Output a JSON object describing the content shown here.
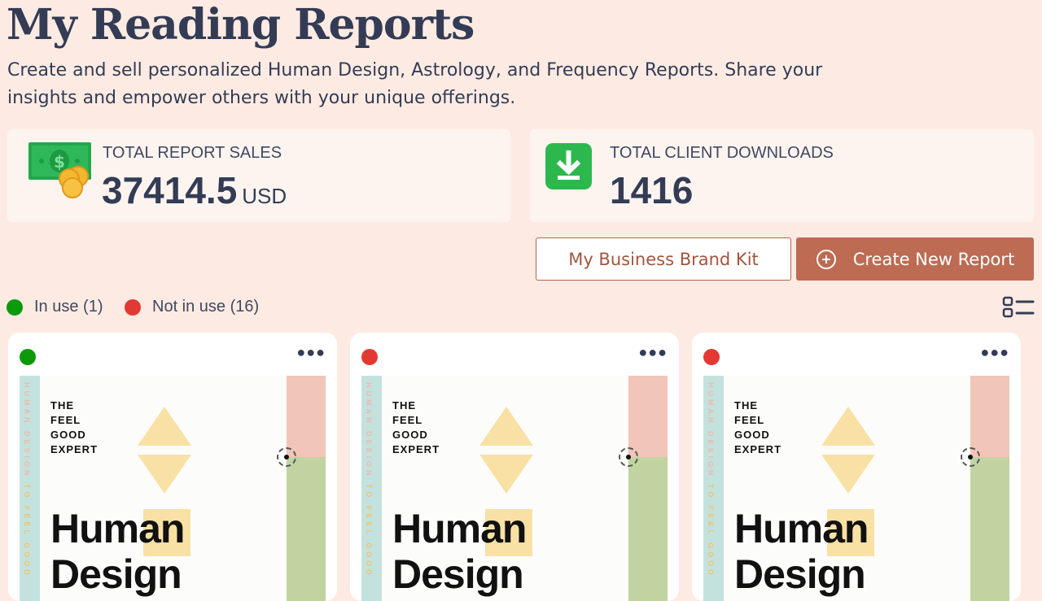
{
  "header": {
    "title": "My Reading Reports",
    "subtitle": "Create and sell personalized Human Design, Astrology, and Frequency Reports. Share your insights and empower others with your unique offerings."
  },
  "stats": {
    "sales": {
      "label": "TOTAL REPORT SALES",
      "value": "37414.5",
      "unit": "USD",
      "icon": "money-coins-icon"
    },
    "downloads": {
      "label": "TOTAL CLIENT DOWNLOADS",
      "value": "1416",
      "icon": "download-icon"
    }
  },
  "actions": {
    "brand_kit": "My Business Brand Kit",
    "create": "Create New Report",
    "create_icon": "plus-circle-icon"
  },
  "legend": {
    "in_use": "In use (1)",
    "not_in_use": "Not in use (16)",
    "in_use_color": "#0a9a0a",
    "not_in_use_color": "#e23a33"
  },
  "view_toggle_icon": "list-view-icon",
  "reports": [
    {
      "status": "in-use",
      "status_color": "#0a9a0a",
      "cover": {
        "tag": "THE\nFEEL\nGOOD\nEXPERT",
        "title": "Human\nDesign",
        "side_a": "HUMAN DESIGN",
        "side_b": "TO FEEL GOOD"
      }
    },
    {
      "status": "not-in-use",
      "status_color": "#e23a33",
      "cover": {
        "tag": "THE\nFEEL\nGOOD\nEXPERT",
        "title": "Human\nDesign",
        "side_a": "HUMAN DESIGN",
        "side_b": "TO FEEL GOOD"
      }
    },
    {
      "status": "not-in-use",
      "status_color": "#e23a33",
      "cover": {
        "tag": "THE\nFEEL\nGOOD\nEXPERT",
        "title": "Human\nDesign",
        "side_a": "HUMAN DESIGN",
        "side_b": "TO FEEL GOOD"
      }
    }
  ]
}
